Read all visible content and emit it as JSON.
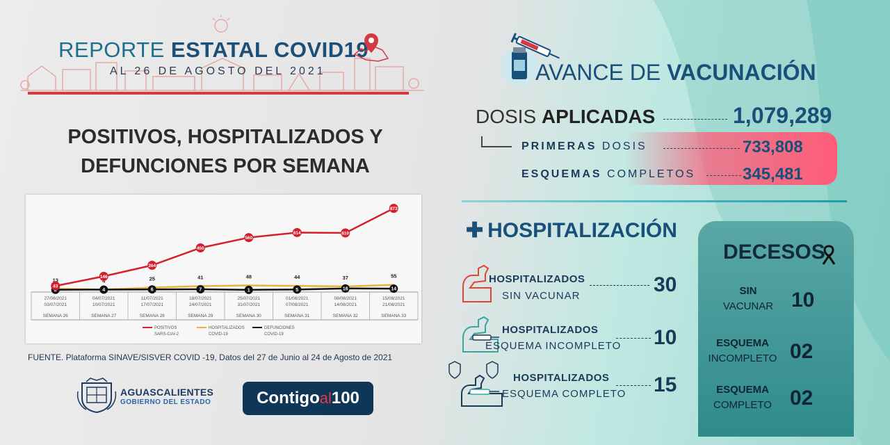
{
  "header": {
    "title_prefix": "REPORTE ",
    "title_bold": "ESTATAL COVID19",
    "date": "AL 26 DE AGOSTO DEL 2021"
  },
  "main_title": {
    "line1": "POSITIVOS, HOSPITALIZADOS Y",
    "line2": "DEFUNCIONES POR SEMANA"
  },
  "chart_data": {
    "type": "line",
    "categories": [
      {
        "range": [
          "27/06/2021",
          "03/07/2021"
        ],
        "week": "SEMANA 26"
      },
      {
        "range": [
          "04/07/2021",
          "10/07/2021"
        ],
        "week": "SEMANA 27"
      },
      {
        "range": [
          "11/07/2021",
          "17/07/2021"
        ],
        "week": "SEMANA 28"
      },
      {
        "range": [
          "18/07/2021",
          "24/07/2021"
        ],
        "week": "SEMANA 29"
      },
      {
        "range": [
          "25/07/2021",
          "31/07/2021"
        ],
        "week": "SEMANA 30"
      },
      {
        "range": [
          "01/08/2021",
          "07/08/2021"
        ],
        "week": "SEMANA 31"
      },
      {
        "range": [
          "08/08/2021",
          "14/08/2021"
        ],
        "week": "SEMANA 32"
      },
      {
        "range": [
          "15/08/2021",
          "21/08/2021"
        ],
        "week": "SEMANA 33"
      }
    ],
    "series": [
      {
        "name": "POSITIVOS SARS-CoV-2",
        "color": "#d4202a",
        "values": [
          43,
          146,
          264,
          450,
          560,
          614,
          610,
          873
        ]
      },
      {
        "name": "HOSPITALIZADOS COVID-19",
        "color": "#e8b43a",
        "values": [
          13,
          4,
          25,
          41,
          48,
          44,
          37,
          55
        ]
      },
      {
        "name": "DEFUNCIONES COVID-19",
        "color": "#111111",
        "values": [
          2,
          4,
          6,
          7,
          1,
          5,
          16,
          14
        ]
      }
    ],
    "legend": [
      {
        "l1": "POSITIVOS",
        "l2": "SARS-CoV-2"
      },
      {
        "l1": "HOSPITALIZADOS",
        "l2": "COVID-19"
      },
      {
        "l1": "DEFUNCIONES",
        "l2": "COVID-19"
      }
    ],
    "ylim": [
      0,
      900
    ],
    "legend_position": "bottom"
  },
  "source": "FUENTE. Plataforma SINAVE/SISVER COVID -19, Datos del 27 de Junio al 24 de Agosto de 2021",
  "logos": {
    "ags_name": "AGUASCALIENTES",
    "ags_sub": "GOBIERNO DEL ESTADO",
    "contigo_a": "Contigo",
    "contigo_b": "al",
    "contigo_c": "100"
  },
  "vacunacion": {
    "title_prefix": "AVANCE DE ",
    "title_bold": "VACUNACIÓN",
    "dosis_prefix": "DOSIS ",
    "dosis_bold": "APLICADAS",
    "dosis_value": "1,079,289",
    "primeras_bold": "PRIMERAS ",
    "primeras_rest": "DOSIS",
    "primeras_value": "733,808",
    "esquemas_bold": "ESQUEMAS ",
    "esquemas_rest": "COMPLETOS",
    "esquemas_value": "345,481"
  },
  "hospitalizacion": {
    "title": "HOSPITALIZACIÓN",
    "rows": [
      {
        "l1": "HOSPITALIZADOS",
        "l2": "SIN VACUNAR",
        "value": "30"
      },
      {
        "l1": "HOSPITALIZADOS",
        "l2": "ESQUEMA INCOMPLETO",
        "value": "10"
      },
      {
        "l1": "HOSPITALIZADOS",
        "l2": "ESQUEMA COMPLETO",
        "value": "15"
      }
    ]
  },
  "decesos": {
    "title": "DECESOS",
    "rows": [
      {
        "l1": "SIN",
        "l2": "VACUNAR",
        "value": "10"
      },
      {
        "l1": "ESQUEMA",
        "l2": "INCOMPLETO",
        "value": "02"
      },
      {
        "l1": "ESQUEMA",
        "l2": "COMPLETO",
        "value": "02"
      }
    ]
  },
  "colors": {
    "navy": "#1a4f7a",
    "red": "#d43a43",
    "pink": "#ff5c78",
    "teal": "#2f8a8a"
  }
}
